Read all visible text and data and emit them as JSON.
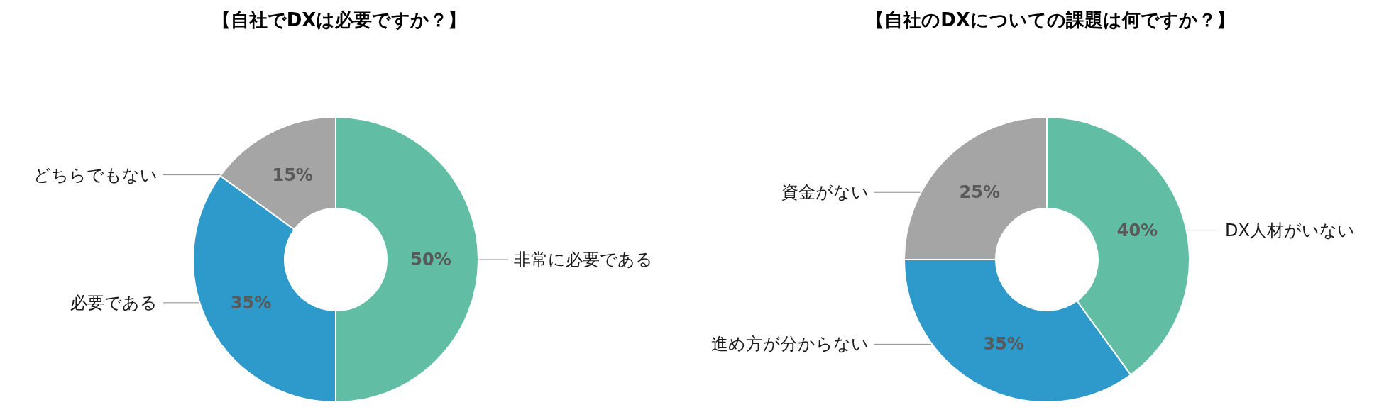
{
  "chart_data": [
    {
      "type": "donut",
      "title": "【自社でDXは必要ですか？】",
      "categories": [
        "非常に必要である",
        "必要である",
        "どちらでもない"
      ],
      "values": [
        50,
        35,
        15
      ],
      "colors": [
        "#61bea4",
        "#2e99cb",
        "#a5a5a5"
      ],
      "value_labels": [
        "50%",
        "35%",
        "15%"
      ]
    },
    {
      "type": "donut",
      "title": "【自社のDXについての課題は何ですか？】",
      "categories": [
        "DX人材がいない",
        "進め方が分からない",
        "資金がない"
      ],
      "values": [
        40,
        35,
        25
      ],
      "colors": [
        "#61bea4",
        "#2e99cb",
        "#a5a5a5"
      ],
      "value_labels": [
        "40%",
        "35%",
        "25%"
      ]
    }
  ]
}
